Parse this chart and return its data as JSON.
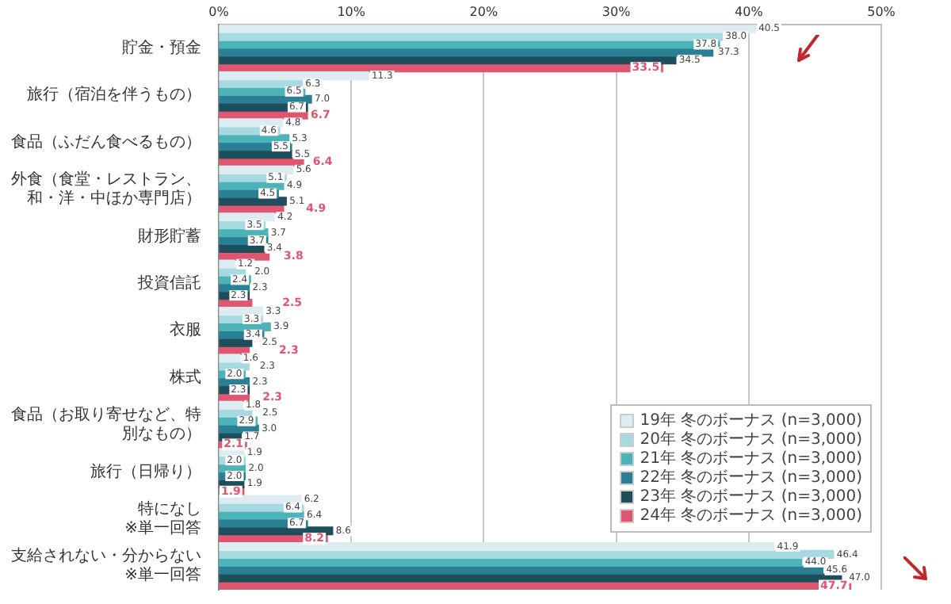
{
  "chart_data": {
    "type": "bar",
    "orientation": "horizontal",
    "categories": [
      "貯金・預金",
      "旅行（宿泊を伴うもの）",
      "食品（ふだん食べるもの）",
      "外食（食堂・レストラン、和・洋・中ほか専門店）",
      "財形貯蓄",
      "投資信託",
      "衣服",
      "株式",
      "食品（お取り寄せなど、特別なもの）",
      "旅行（日帰り）",
      "特になし ※単一回答",
      "支給されない・分からない ※単一回答"
    ],
    "series": [
      {
        "name": "19年 冬のボーナス (n=3,000)",
        "color": "#dcecf1",
        "values": [
          40.5,
          11.3,
          4.8,
          5.6,
          4.2,
          1.2,
          3.3,
          1.6,
          1.8,
          1.9,
          6.2,
          41.9
        ],
        "value_labels": [
          "40.5",
          "11.3",
          "4.8",
          "5.6",
          "4.2",
          "1.2",
          "3.3",
          "1.6",
          "1.8",
          "1.9",
          "6.2",
          "41.9"
        ]
      },
      {
        "name": "20年 冬のボーナス (n=3,000)",
        "color": "#a6d9e0",
        "values": [
          38.0,
          6.3,
          4.6,
          5.1,
          3.5,
          2.0,
          3.3,
          2.3,
          2.5,
          2.0,
          6.4,
          46.4
        ],
        "value_labels": [
          "38.0",
          "6.3",
          "4.6",
          "5.1",
          "3.5",
          "2.0",
          "3.3",
          "2.3",
          "2.5",
          "2.0",
          "6.4",
          "46.4"
        ]
      },
      {
        "name": "21年 冬のボーナス (n=3,000)",
        "color": "#4cb3b8",
        "values": [
          37.8,
          6.5,
          5.3,
          4.9,
          3.7,
          2.4,
          3.9,
          2.0,
          2.9,
          2.0,
          6.4,
          44.0
        ],
        "value_labels": [
          "37.8",
          "6.5",
          "5.3",
          "4.9",
          "3.7",
          "2.4",
          "3.9",
          "2.0",
          "2.9",
          "2.0",
          "6.4",
          "44.0"
        ]
      },
      {
        "name": "22年 冬のボーナス (n=3,000)",
        "color": "#2a7f95",
        "values": [
          37.3,
          7.0,
          5.5,
          4.5,
          3.7,
          2.3,
          3.4,
          2.3,
          3.0,
          2.0,
          6.7,
          45.6
        ],
        "value_labels": [
          "37.3",
          "7.0",
          "5.5",
          "4.5",
          "3.7",
          "2.3",
          "3.4",
          "2.3",
          "3.0",
          "2.0",
          "6.7",
          "45.6"
        ]
      },
      {
        "name": "23年 冬のボーナス (n=3,000)",
        "color": "#1d4e5b",
        "values": [
          34.5,
          6.7,
          5.5,
          5.1,
          3.4,
          2.3,
          2.5,
          2.3,
          1.7,
          1.9,
          8.6,
          47.0
        ],
        "value_labels": [
          "34.5",
          "6.7",
          "5.5",
          "5.1",
          "3.4",
          "2.3",
          "2.5",
          "2.3",
          "1.7",
          "1.9",
          "8.6",
          "47.0"
        ]
      },
      {
        "name": "24年 冬のボーナス (n=3,000)",
        "color": "#e05570",
        "values": [
          33.5,
          6.7,
          6.4,
          4.9,
          3.8,
          2.5,
          2.3,
          2.3,
          2.1,
          1.9,
          8.2,
          47.7
        ],
        "value_labels": [
          "33.5",
          "6.7",
          "6.4",
          "4.9",
          "3.8",
          "2.5",
          "2.3",
          "2.3",
          "2.1",
          "1.9",
          "8.2",
          "47.7"
        ]
      }
    ],
    "xlim": [
      0,
      50
    ],
    "xticks": [
      {
        "value": 0,
        "label": "0%"
      },
      {
        "value": 10,
        "label": "10%"
      },
      {
        "value": 20,
        "label": "20%"
      },
      {
        "value": 30,
        "label": "30%"
      },
      {
        "value": 40,
        "label": "40%"
      },
      {
        "value": 50,
        "label": "50%"
      }
    ],
    "grid": "x",
    "legend": "bottom right"
  }
}
